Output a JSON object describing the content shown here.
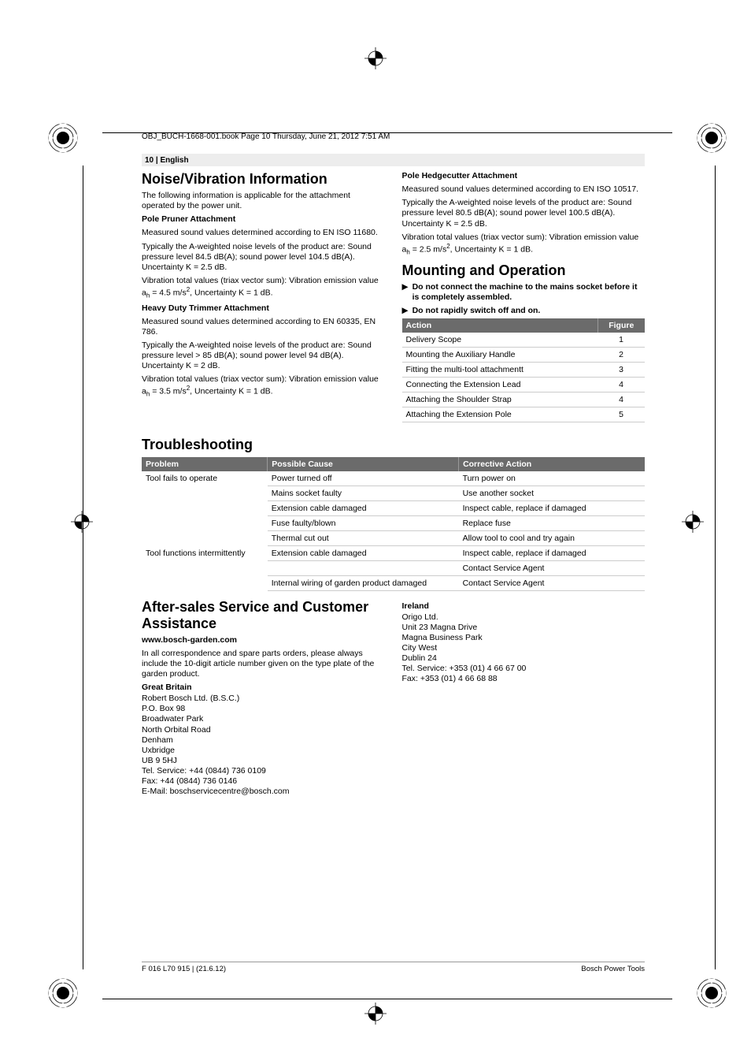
{
  "meta": {
    "line": "OBJ_BUCH-1668-001.book  Page 10  Thursday, June 21, 2012  7:51 AM"
  },
  "header": {
    "pagenum": "10",
    "lang": "English"
  },
  "left": {
    "h_noise": "Noise/Vibration Information",
    "intro": "The following information is applicable for the attachment operated by the power unit.",
    "pp_title": "Pole Pruner Attachment",
    "pp_l1": "Measured sound values determined according to EN ISO 11680.",
    "pp_l2": "Typically the A-weighted noise levels of the product are: Sound pressure level 84.5 dB(A); sound power level 104.5 dB(A). Uncertainty K = 2.5 dB.",
    "pp_l3a": "Vibration total values (triax vector sum): Vibration emission value a",
    "pp_l3_sub": "h",
    "pp_l3b": " = 4.5 m/s",
    "pp_l3_sup": "2",
    "pp_l3c": ", Uncertainty K = 1 dB.",
    "hd_title": "Heavy Duty Trimmer Attachment",
    "hd_l1": "Measured sound values determined according to  EN 60335, EN 786.",
    "hd_l2": "Typically the A-weighted noise levels of the product are: Sound pressure level > 85 dB(A); sound power level 94 dB(A). Uncertainty K = 2 dB.",
    "hd_l3a": "Vibration total values (triax vector sum): Vibration emission value a",
    "hd_l3b": " = 3.5 m/s",
    "hd_l3c": ", Uncertainty K = 1 dB."
  },
  "right": {
    "ph_title": "Pole Hedgecutter Attachment",
    "ph_l1": "Measured sound values determined according to EN ISO 10517.",
    "ph_l2": "Typically the A-weighted noise levels of the product are: Sound pressure level 80.5 dB(A); sound power level 100.5 dB(A). Uncertainty K = 2.5 dB.",
    "ph_l3a": "Vibration total values (triax vector sum): Vibration emission value a",
    "ph_l3b": " = 2.5 m/s",
    "ph_l3c": ", Uncertainty K = 1 dB.",
    "h_mount": "Mounting and Operation",
    "b1": "Do not connect the machine to the mains socket before it is completely assembled.",
    "b2": "Do not rapidly switch off and on.",
    "tbl": {
      "h1": "Action",
      "h2": "Figure",
      "rows": [
        [
          "Delivery Scope",
          "1"
        ],
        [
          "Mounting the Auxiliary Handle",
          "2"
        ],
        [
          "Fitting the multi-tool attachmentt",
          "3"
        ],
        [
          "Connecting the Extension Lead",
          "4"
        ],
        [
          "Attaching the Shoulder Strap",
          "4"
        ],
        [
          "Attaching the Extension Pole",
          "5"
        ]
      ]
    }
  },
  "trouble": {
    "h": "Troubleshooting",
    "cols": [
      "Problem",
      "Possible Cause",
      "Corrective Action"
    ],
    "rows": [
      [
        "Tool fails to operate",
        "Power turned off",
        "Turn power on"
      ],
      [
        "",
        "Mains socket faulty",
        "Use another socket"
      ],
      [
        "",
        "Extension cable damaged",
        "Inspect cable, replace if damaged"
      ],
      [
        "",
        "Fuse faulty/blown",
        "Replace fuse"
      ],
      [
        "",
        "Thermal cut out",
        "Allow tool to cool and try again"
      ],
      [
        "Tool functions intermittently",
        "Extension cable damaged",
        "Inspect cable, replace if damaged"
      ],
      [
        "",
        "",
        "Contact Service Agent"
      ],
      [
        "",
        "Internal wiring of garden product damaged",
        "Contact Service Agent"
      ]
    ]
  },
  "after": {
    "h": "After-sales Service and Customer Assistance",
    "url": "www.bosch-garden.com",
    "p": "In all correspondence and spare parts orders, please always include the 10-digit article number given on the type plate of the garden product.",
    "gb_h": "Great Britain",
    "gb": [
      "Robert Bosch Ltd. (B.S.C.)",
      "P.O. Box 98",
      "Broadwater Park",
      "North Orbital Road",
      "Denham",
      "Uxbridge",
      "UB 9 5HJ",
      "Tel. Service: +44 (0844) 736 0109",
      "Fax: +44 (0844) 736 0146",
      "E-Mail: boschservicecentre@bosch.com"
    ],
    "ie_h": "Ireland",
    "ie": [
      "Origo Ltd.",
      "Unit 23 Magna Drive",
      "Magna Business Park",
      "City West",
      "Dublin 24",
      "Tel. Service: +353 (01) 4 66 67 00",
      "Fax: +353 (01) 4 66 68 88"
    ]
  },
  "footer": {
    "left": "F 016 L70 915 | (21.6.12)",
    "right": "Bosch Power Tools"
  }
}
